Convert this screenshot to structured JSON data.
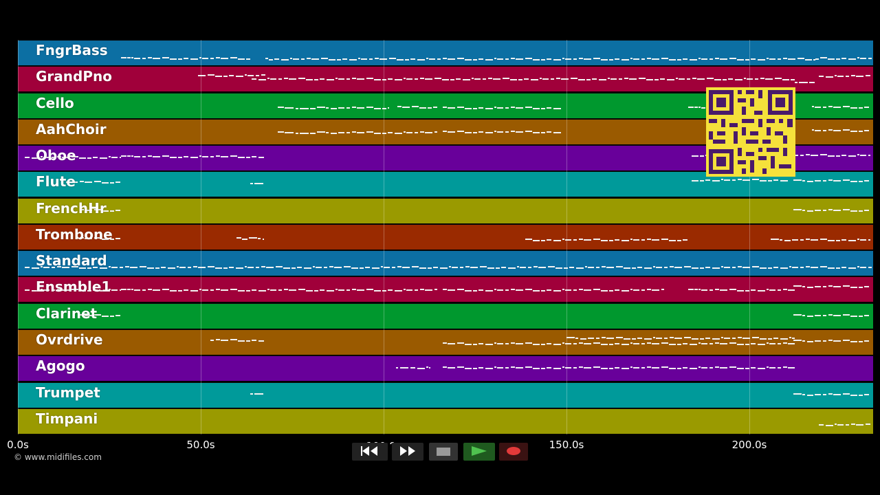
{
  "timeline": {
    "tracks": [
      {
        "name": "FngrBass",
        "color": "#0c6fa3"
      },
      {
        "name": "GrandPno",
        "color": "#a0003a"
      },
      {
        "name": "Cello",
        "color": "#00982e"
      },
      {
        "name": "AahChoir",
        "color": "#9a5a00"
      },
      {
        "name": "Oboe",
        "color": "#68009a"
      },
      {
        "name": "Flute",
        "color": "#009a9a"
      },
      {
        "name": "FrenchHr",
        "color": "#9a9a00"
      },
      {
        "name": "Trombone",
        "color": "#9a2a00"
      },
      {
        "name": "Standard",
        "color": "#0c6fa3"
      },
      {
        "name": "Ensmble1",
        "color": "#a0003a"
      },
      {
        "name": "Clarinet",
        "color": "#00982e"
      },
      {
        "name": "Ovrdrive",
        "color": "#9a5a00"
      },
      {
        "name": "Agogo",
        "color": "#68009a"
      },
      {
        "name": "Trumpet",
        "color": "#009a9a"
      },
      {
        "name": "Timpani",
        "color": "#9a9a00"
      }
    ],
    "x_ticks": [
      "0.0s",
      "50.0s",
      "100.0s",
      "150.0s",
      "200.0s"
    ]
  },
  "footer": {
    "copyright": "© www.midifiles.com"
  },
  "transport": {
    "rewind": "rewind-icon",
    "fast_forward": "fast-forward-icon",
    "stop": "stop-icon",
    "play": "play-icon",
    "record": "record-icon"
  }
}
